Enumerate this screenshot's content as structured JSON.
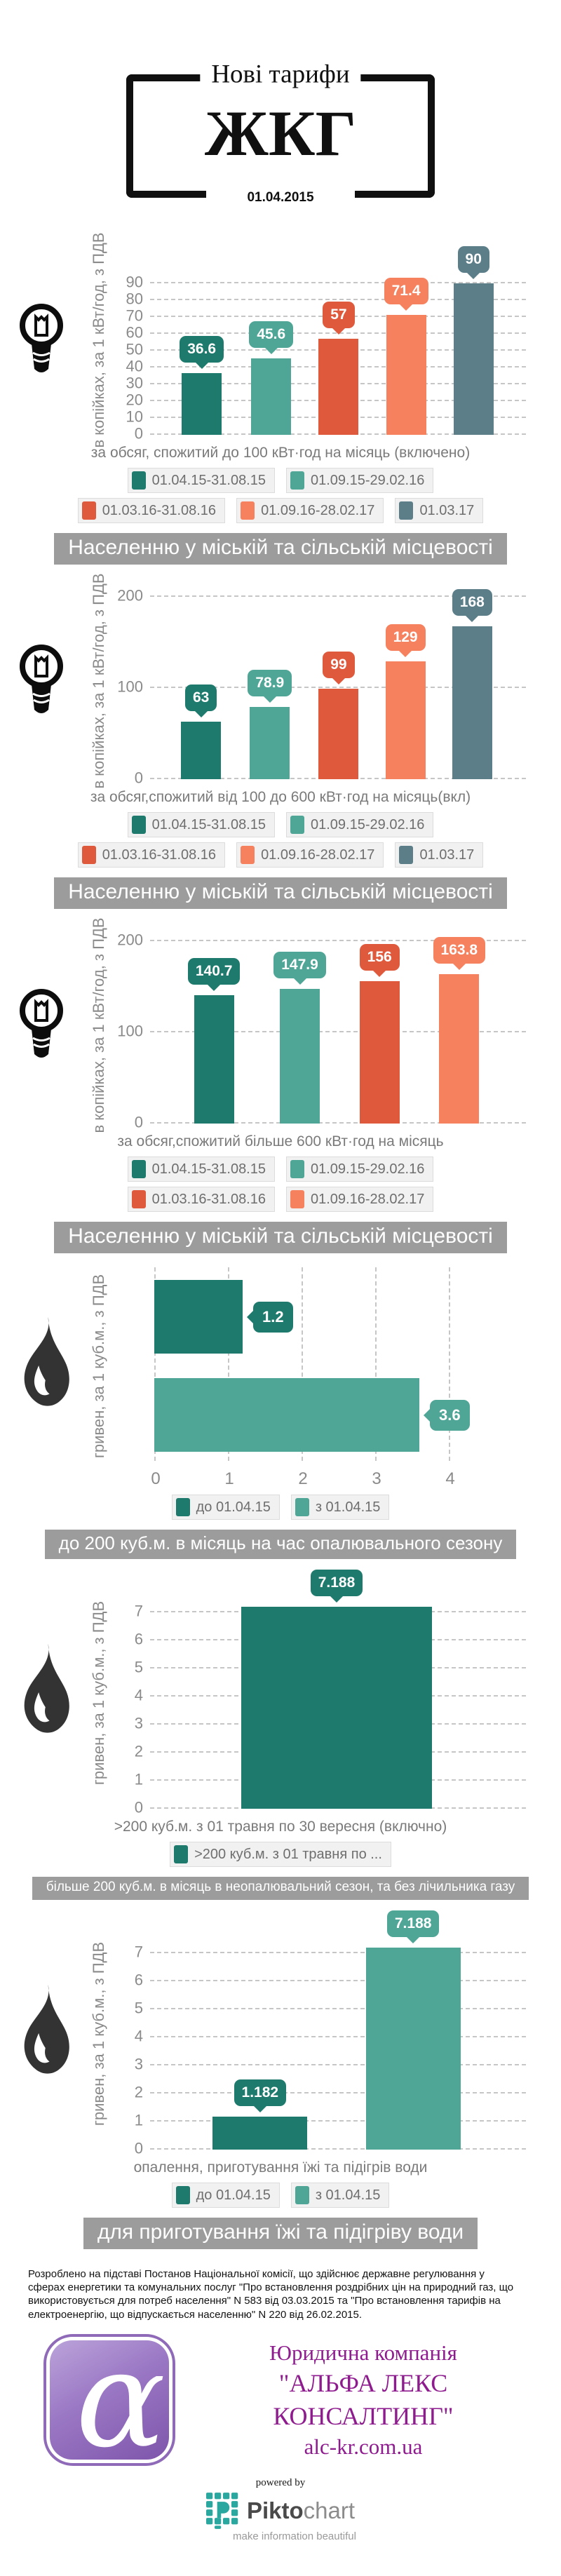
{
  "header": {
    "subtitle": "Нові тарифи",
    "title": "ЖКГ",
    "date": "01.04.2015"
  },
  "colors": {
    "teal_dark": "#1e7a6d",
    "teal_mid": "#4fa697",
    "orange_dark": "#df5a3d",
    "orange_light": "#f5815f",
    "slate": "#5b7e89",
    "banner_bg": "#9c9c9c",
    "axis_text": "#8a8a8a",
    "purple_text": "#8e1c8e",
    "logo_purple": "#8f6ab8",
    "pikto_teal": "#2aa79e"
  },
  "chart_data": [
    {
      "id": "electricity-up-to-100",
      "type": "bar",
      "icon": "light-bulb",
      "ylabel": "в копійках, за 1 кВт/год, з ПДВ",
      "xlabel": "за обсяг, спожитий до 100 кВт·год на місяць (включено)",
      "yticks": [
        0,
        10,
        20,
        30,
        40,
        50,
        60,
        70,
        80,
        90
      ],
      "ylim": [
        0,
        100
      ],
      "grid": true,
      "legend_position": "bottom",
      "series": [
        {
          "label": "01.04.15-31.08.15",
          "color": "teal_dark",
          "value": 36.6,
          "value_label": "36.6"
        },
        {
          "label": "01.09.15-29.02.16",
          "color": "teal_mid",
          "value": 45.6,
          "value_label": "45.6"
        },
        {
          "label": "01.03.16-31.08.16",
          "color": "orange_dark",
          "value": 57,
          "value_label": "57"
        },
        {
          "label": "01.09.16-28.02.17",
          "color": "orange_light",
          "value": 71.4,
          "value_label": "71.4"
        },
        {
          "label": "01.03.17",
          "color": "slate",
          "value": 90,
          "value_label": "90"
        }
      ],
      "legend_rows": [
        [
          0,
          1
        ],
        [
          2,
          3,
          4
        ]
      ],
      "banner": "Населенню у міській та сільській місцевості"
    },
    {
      "id": "electricity-100-to-600",
      "type": "bar",
      "icon": "light-bulb",
      "ylabel": "в копійках, за 1 кВт/год, з ПДВ",
      "xlabel": "за обсяг,спожитий від 100 до 600 кВт·год на місяць(вкл)",
      "yticks": [
        0,
        100,
        200
      ],
      "ylim": [
        0,
        215
      ],
      "grid": true,
      "legend_position": "bottom",
      "series": [
        {
          "label": "01.04.15-31.08.15",
          "color": "teal_dark",
          "value": 63,
          "value_label": "63"
        },
        {
          "label": "01.09.15-29.02.16",
          "color": "teal_mid",
          "value": 78.9,
          "value_label": "78.9"
        },
        {
          "label": "01.03.16-31.08.16",
          "color": "orange_dark",
          "value": 99,
          "value_label": "99"
        },
        {
          "label": "01.09.16-28.02.17",
          "color": "orange_light",
          "value": 129,
          "value_label": "129"
        },
        {
          "label": "01.03.17",
          "color": "slate",
          "value": 168,
          "value_label": "168"
        }
      ],
      "legend_rows": [
        [
          0,
          1
        ],
        [
          2,
          3,
          4
        ]
      ],
      "banner": "Населенню у міській та сільській місцевості"
    },
    {
      "id": "electricity-over-600",
      "type": "bar",
      "icon": "light-bulb",
      "ylabel": "в копійках, за 1 кВт/год, з ПДВ",
      "xlabel": "за обсяг,спожитий більше 600 кВт·год на місяць",
      "yticks": [
        0,
        100,
        200
      ],
      "ylim": [
        0,
        215
      ],
      "grid": true,
      "legend_position": "bottom",
      "series": [
        {
          "label": "01.04.15-31.08.15",
          "color": "teal_dark",
          "value": 140.7,
          "value_label": "140.7"
        },
        {
          "label": "01.09.15-29.02.16",
          "color": "teal_mid",
          "value": 147.9,
          "value_label": "147.9"
        },
        {
          "label": "01.03.16-31.08.16",
          "color": "orange_dark",
          "value": 156,
          "value_label": "156"
        },
        {
          "label": "01.09.16-28.02.17",
          "color": "orange_light",
          "value": 163.8,
          "value_label": "163.8"
        }
      ],
      "legend_rows": [
        [
          0,
          1
        ],
        [
          2,
          3
        ]
      ],
      "banner": "Населенню у міській та сільській місцевості"
    },
    {
      "id": "gas-heating-season",
      "type": "bar-horizontal",
      "icon": "flame",
      "ylabel": "гривен, за 1 куб.м., з ПДВ",
      "xlabel": "",
      "xticks": [
        0,
        1,
        2,
        3,
        4
      ],
      "xlim": [
        0,
        4.2
      ],
      "grid": true,
      "legend_position": "bottom",
      "series": [
        {
          "label": "до 01.04.15",
          "color": "teal_dark",
          "value": 1.2,
          "value_label": "1.2"
        },
        {
          "label": "з 01.04.15",
          "color": "teal_mid",
          "value": 3.6,
          "value_label": "3.6"
        }
      ],
      "legend_rows": [
        [
          0,
          1
        ]
      ],
      "banner": "до 200 куб.м. в місяць на час опалювального сезону"
    },
    {
      "id": "gas-summer-over-200",
      "type": "bar",
      "icon": "flame",
      "ylabel": "гривен, за 1 куб.м., з ПДВ",
      "xlabel": ">200 куб.м. з 01 травня по 30 вересня (включно)",
      "yticks": [
        0,
        1,
        2,
        3,
        4,
        5,
        6,
        7
      ],
      "ylim": [
        0,
        7.5
      ],
      "grid": true,
      "legend_position": "bottom",
      "series": [
        {
          "label": ">200 куб.м. з 01 травня по ...",
          "color": "teal_dark",
          "value": 7.188,
          "value_label": "7.188"
        }
      ],
      "legend_rows": [
        [
          0
        ]
      ],
      "banner": "більше 200 куб.м. в місяць в неопалювальний сезон, та без лічильника газу"
    },
    {
      "id": "gas-cooking-water",
      "type": "bar",
      "icon": "flame",
      "ylabel": "гривен, за 1 куб.м., з ПДВ",
      "xlabel": "опалення, приготування їжі та підігрів води",
      "yticks": [
        0,
        1,
        2,
        3,
        4,
        5,
        6,
        7
      ],
      "ylim": [
        0,
        7.5
      ],
      "grid": true,
      "legend_position": "bottom",
      "series": [
        {
          "label": "до 01.04.15",
          "color": "teal_dark",
          "value": 1.182,
          "value_label": "1.182"
        },
        {
          "label": "з 01.04.15",
          "color": "teal_mid",
          "value": 7.188,
          "value_label": "7.188"
        }
      ],
      "legend_rows": [
        [
          0,
          1
        ]
      ],
      "banner": "для приготування їжі та підігріву води"
    }
  ],
  "footer": {
    "disclaimer": "Розроблено на підставі Постанов Національної комісії, що здійснює державне регулювання у сферах енергетики та комунальних послуг \"Про встановлення роздрібних цін на природний газ, що використовується для потреб населення\" N 583 від 03.03.2015 та \"Про встановлення тарифів на електроенергію, що відпускається населенню\" N 220 від 26.02.2015."
  },
  "company": {
    "logo_glyph": "α",
    "line1": "Юридична компанія",
    "line2": "\"АЛЬФА ЛЕКС КОНСАЛТИНГ\"",
    "line3": "alc-kr.com.ua"
  },
  "powered_by": {
    "label": "powered by",
    "brand_bold": "Pikto",
    "brand_light": "chart",
    "tagline": "make information beautiful"
  }
}
